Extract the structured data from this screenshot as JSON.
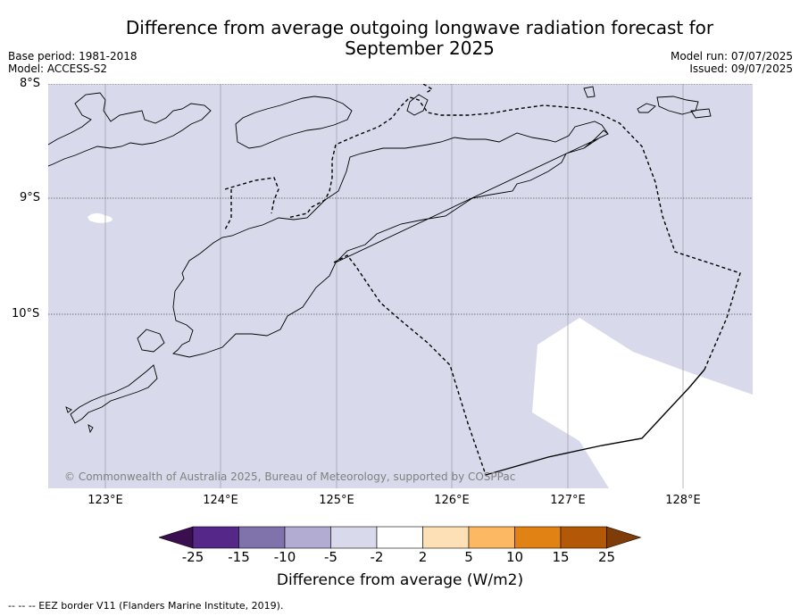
{
  "title": "Difference from average outgoing longwave radiation forecast for September 2025",
  "base_period": "Base period: 1981-2018",
  "model": "Model: ACCESS-S2",
  "model_run": "Model run: 07/07/2025",
  "issued": "Issued: 09/07/2025",
  "lat_labels": [
    "8°S",
    "9°S",
    "10°S"
  ],
  "lon_labels": [
    "123°E",
    "124°E",
    "125°E",
    "126°E",
    "127°E",
    "128°E"
  ],
  "copyright": "© Commonwealth of Australia 2025, Bureau of Meteorology, supported by COSPPac",
  "colorbar": {
    "ticks": [
      "-25",
      "-15",
      "-10",
      "-5",
      "-2",
      "2",
      "5",
      "10",
      "15",
      "25"
    ],
    "label": "Difference from average (W/m2)",
    "colors": [
      "#3b0f4f",
      "#542788",
      "#8073ac",
      "#b2abd2",
      "#d8daeb",
      "#ffffff",
      "#fee0b6",
      "#fdb863",
      "#e08214",
      "#b35806",
      "#7f3b08"
    ]
  },
  "map_fill_color": "#d8daeb",
  "footnote": "--  --  -- EEZ border V11 (Flanders Marine Institute, 2019)."
}
